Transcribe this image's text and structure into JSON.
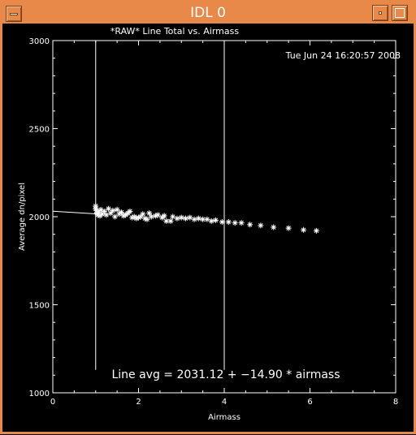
{
  "window": {
    "title": "IDL 0",
    "accent_color": "#e8894a",
    "buttons": {
      "menu": "window-menu-icon",
      "minimize": "minimize-icon",
      "maximize": "maximize-icon"
    }
  },
  "plot": {
    "timestamp": "Tue Jun 24 16:20:57 2008",
    "fit_text": "Line avg = 2031.12 + −14.90 * airmass"
  },
  "chart_data": {
    "type": "scatter",
    "title": "*RAW* Line Total vs. Airmass",
    "xlabel": "Airmass",
    "ylabel": "Average dn/pixel",
    "xlim": [
      0,
      8
    ],
    "ylim": [
      1000,
      3000
    ],
    "xticks": [
      0,
      2,
      4,
      6,
      8
    ],
    "yticks": [
      1000,
      1500,
      2000,
      2500,
      3000
    ],
    "xtick_labels": [
      "0",
      "2",
      "4",
      "6",
      "8"
    ],
    "ytick_labels": [
      "1000",
      "1500",
      "2000",
      "2500",
      "3000"
    ],
    "marker": "asterisk",
    "vertical_lines": [
      1.0,
      4.0
    ],
    "fit": {
      "intercept": 2031.12,
      "slope": -14.9,
      "x_range": [
        0,
        1.0
      ]
    },
    "points": [
      {
        "x": 1.0,
        "y": 2060
      },
      {
        "x": 1.0,
        "y": 2045
      },
      {
        "x": 1.02,
        "y": 2035
      },
      {
        "x": 1.03,
        "y": 2020
      },
      {
        "x": 1.05,
        "y": 2010
      },
      {
        "x": 1.07,
        "y": 2025
      },
      {
        "x": 1.1,
        "y": 2005
      },
      {
        "x": 1.12,
        "y": 2040
      },
      {
        "x": 1.15,
        "y": 2015
      },
      {
        "x": 1.2,
        "y": 2030
      },
      {
        "x": 1.25,
        "y": 2010
      },
      {
        "x": 1.3,
        "y": 2045
      },
      {
        "x": 1.35,
        "y": 2020
      },
      {
        "x": 1.4,
        "y": 2035
      },
      {
        "x": 1.45,
        "y": 2000
      },
      {
        "x": 1.5,
        "y": 2040
      },
      {
        "x": 1.55,
        "y": 2015
      },
      {
        "x": 1.6,
        "y": 2025
      },
      {
        "x": 1.65,
        "y": 2005
      },
      {
        "x": 1.7,
        "y": 2010
      },
      {
        "x": 1.75,
        "y": 2020
      },
      {
        "x": 1.8,
        "y": 2030
      },
      {
        "x": 1.85,
        "y": 1995
      },
      {
        "x": 1.9,
        "y": 2000
      },
      {
        "x": 1.95,
        "y": 1990
      },
      {
        "x": 2.0,
        "y": 1995
      },
      {
        "x": 2.05,
        "y": 2000
      },
      {
        "x": 2.1,
        "y": 2015
      },
      {
        "x": 2.15,
        "y": 1990
      },
      {
        "x": 2.2,
        "y": 1985
      },
      {
        "x": 2.25,
        "y": 2020
      },
      {
        "x": 2.3,
        "y": 2000
      },
      {
        "x": 2.4,
        "y": 2005
      },
      {
        "x": 2.45,
        "y": 2010
      },
      {
        "x": 2.55,
        "y": 1995
      },
      {
        "x": 2.6,
        "y": 2005
      },
      {
        "x": 2.65,
        "y": 1975
      },
      {
        "x": 2.75,
        "y": 1975
      },
      {
        "x": 2.8,
        "y": 2000
      },
      {
        "x": 2.9,
        "y": 1990
      },
      {
        "x": 3.0,
        "y": 1995
      },
      {
        "x": 3.1,
        "y": 1990
      },
      {
        "x": 3.2,
        "y": 1995
      },
      {
        "x": 3.3,
        "y": 1985
      },
      {
        "x": 3.4,
        "y": 1990
      },
      {
        "x": 3.5,
        "y": 1985
      },
      {
        "x": 3.6,
        "y": 1985
      },
      {
        "x": 3.7,
        "y": 1975
      },
      {
        "x": 3.8,
        "y": 1980
      },
      {
        "x": 3.95,
        "y": 1970
      },
      {
        "x": 4.1,
        "y": 1970
      },
      {
        "x": 4.25,
        "y": 1965
      },
      {
        "x": 4.4,
        "y": 1965
      },
      {
        "x": 4.6,
        "y": 1955
      },
      {
        "x": 4.85,
        "y": 1950
      },
      {
        "x": 5.15,
        "y": 1940
      },
      {
        "x": 5.5,
        "y": 1935
      },
      {
        "x": 5.85,
        "y": 1925
      },
      {
        "x": 6.15,
        "y": 1920
      }
    ]
  }
}
